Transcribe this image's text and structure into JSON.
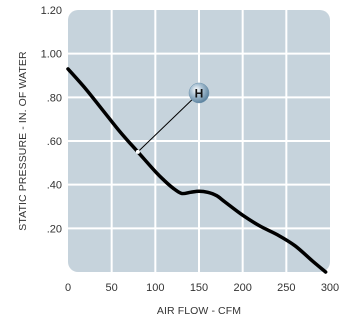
{
  "chart_data": {
    "type": "line",
    "title": "",
    "xlabel": "AIR FLOW - CFM",
    "ylabel": "STATIC PRESSURE - IN. OF WATER",
    "xlim": [
      0,
      300
    ],
    "ylim": [
      0,
      1.2
    ],
    "x_ticks": [
      0,
      50,
      100,
      150,
      200,
      250,
      300
    ],
    "x_tick_labels": [
      "0",
      "50",
      "100",
      "150",
      "200",
      "250",
      "300"
    ],
    "y_ticks": [
      0.2,
      0.4,
      0.6,
      0.8,
      1.0,
      1.2
    ],
    "y_tick_labels": [
      ".20",
      ".40",
      ".60",
      ".80",
      "1.00",
      "1.20"
    ],
    "grid": true,
    "colors": {
      "plot_background": "#c6d3dc",
      "grid": "#ffffff",
      "line": "#000000",
      "marker": "#6e93ad"
    },
    "series": [
      {
        "name": "",
        "x": [
          0,
          20,
          40,
          60,
          80,
          100,
          110,
          120,
          130,
          140,
          150,
          160,
          170,
          180,
          200,
          220,
          240,
          260,
          280,
          295
        ],
        "y": [
          0.93,
          0.84,
          0.74,
          0.64,
          0.55,
          0.46,
          0.42,
          0.385,
          0.36,
          0.365,
          0.37,
          0.365,
          0.35,
          0.32,
          0.26,
          0.21,
          0.17,
          0.12,
          0.05,
          0.0
        ]
      }
    ],
    "annotations": [
      {
        "text": "H",
        "point": [
          80,
          0.55
        ],
        "label_at": [
          150,
          0.82
        ]
      }
    ]
  }
}
